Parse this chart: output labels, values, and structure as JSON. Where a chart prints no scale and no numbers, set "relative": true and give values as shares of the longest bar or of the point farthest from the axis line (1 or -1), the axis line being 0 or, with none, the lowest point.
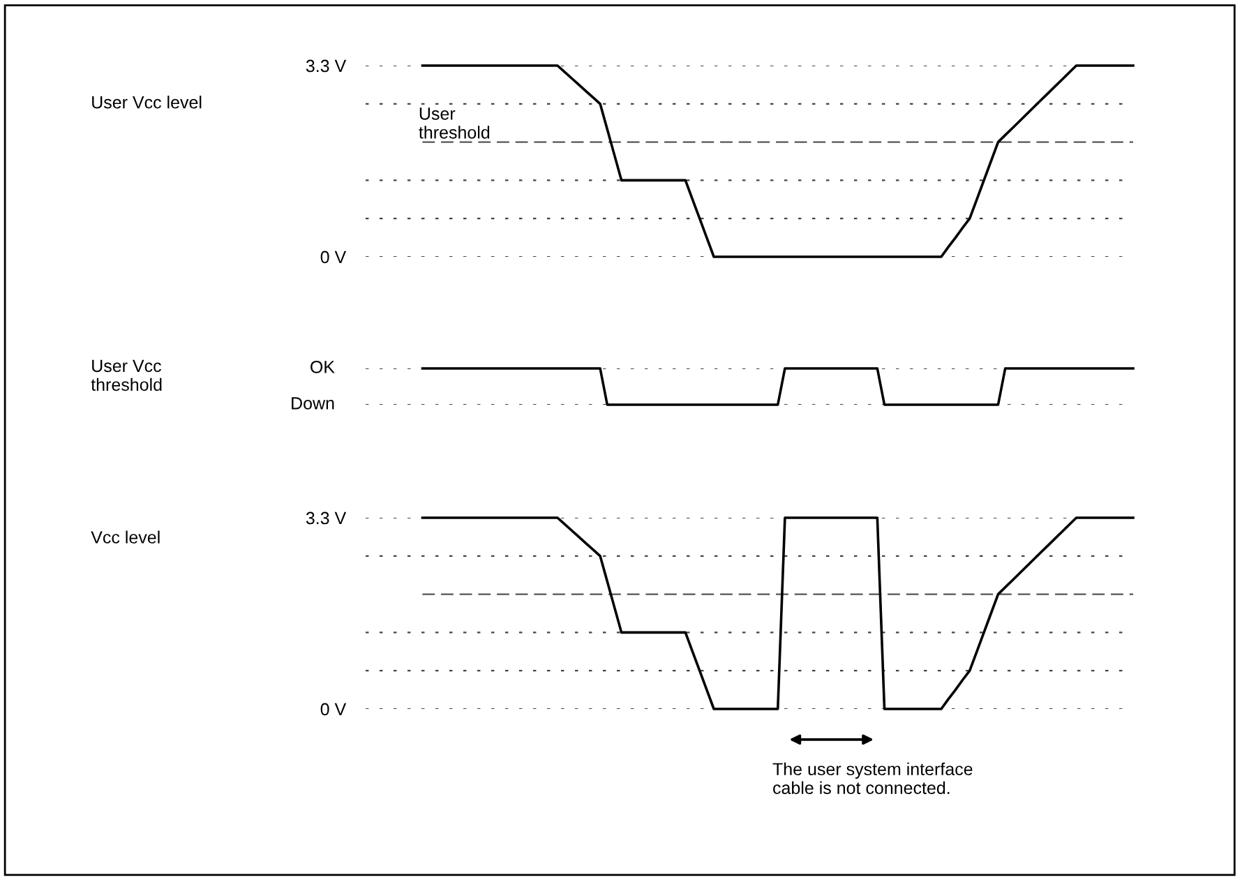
{
  "chart_data": [
    {
      "type": "line",
      "ylabel": "User Vcc level",
      "tick_labels": "y",
      "grid": "y",
      "ylim": [
        0,
        3.3
      ],
      "yticks": [
        {
          "value": 0,
          "label": "0 V"
        },
        {
          "value": 0.66,
          "label": null
        },
        {
          "value": 1.32,
          "label": null
        },
        {
          "value": 2.64,
          "label": null
        },
        {
          "value": 3.3,
          "label": "3.3 V"
        }
      ],
      "ref_lines": [
        {
          "axis": "y",
          "value": 1.98,
          "label": "User\nthreshold",
          "line_style": "dashed",
          "color": "#555555"
        }
      ],
      "categories": [
        null,
        null,
        null,
        null,
        null,
        null,
        null,
        null,
        null,
        null,
        null,
        null,
        null,
        null,
        null,
        null,
        null,
        null,
        null,
        null,
        null,
        null,
        null,
        null,
        null,
        null,
        null,
        null,
        null,
        null,
        null,
        null,
        null,
        null,
        null,
        null,
        null,
        null,
        null,
        null,
        null,
        null,
        null,
        null,
        null,
        null,
        null,
        null,
        null,
        null,
        null,
        null,
        null,
        null,
        null,
        null,
        null,
        null,
        null,
        null,
        null,
        null,
        null,
        null,
        null,
        null,
        null,
        null,
        null,
        null,
        null,
        null,
        null,
        null,
        null,
        null,
        null,
        null,
        null,
        null,
        null,
        null,
        null,
        null,
        null,
        null,
        null,
        null,
        null,
        null,
        null,
        null,
        null,
        null,
        null,
        null,
        null,
        null,
        null,
        null,
        null
      ],
      "series": [
        {
          "color": "#000000",
          "values": [
            3.3,
            3.3,
            3.3,
            3.3,
            3.3,
            3.3,
            3.3,
            3.3,
            3.3,
            3.3,
            3.3,
            3.3,
            3.3,
            3.3,
            3.3,
            3.3,
            3.3,
            3.3,
            3.3,
            3.3,
            3.19,
            3.08,
            2.97,
            2.86,
            2.75,
            2.64,
            2.2,
            1.76,
            1.32,
            1.32,
            1.32,
            1.32,
            1.32,
            1.32,
            1.32,
            1.32,
            1.32,
            1.32,
            0.99,
            0.66,
            0.33,
            0,
            0,
            0,
            0,
            0,
            0,
            0,
            0,
            0,
            0,
            0,
            0,
            0,
            0,
            0,
            0,
            0,
            0,
            0,
            0,
            0,
            0,
            0,
            0,
            0,
            0,
            0,
            0,
            0,
            0,
            0,
            0,
            0,
            0.17,
            0.33,
            0.5,
            0.66,
            0.99,
            1.32,
            1.65,
            1.98,
            2.1,
            2.22,
            2.34,
            2.46,
            2.58,
            2.7,
            2.82,
            2.94,
            3.06,
            3.18,
            3.3,
            3.3,
            3.3,
            3.3,
            3.3,
            3.3,
            3.3,
            3.3,
            3.3
          ]
        }
      ]
    },
    {
      "type": "line",
      "ylabel": "User Vcc\nthreshold",
      "relative": true,
      "grid": "y",
      "annotations": [
        "OK",
        "Down"
      ],
      "categories": [
        null,
        null,
        null,
        null,
        null,
        null,
        null,
        null,
        null,
        null,
        null,
        null,
        null,
        null,
        null,
        null,
        null,
        null,
        null,
        null,
        null,
        null,
        null,
        null,
        null,
        null,
        null,
        null,
        null,
        null,
        null,
        null,
        null,
        null,
        null,
        null,
        null,
        null,
        null,
        null,
        null,
        null,
        null,
        null,
        null,
        null,
        null,
        null,
        null,
        null,
        null,
        null,
        null,
        null,
        null,
        null,
        null,
        null,
        null,
        null,
        null,
        null,
        null,
        null,
        null,
        null,
        null,
        null,
        null,
        null,
        null,
        null,
        null,
        null,
        null,
        null,
        null,
        null,
        null,
        null,
        null,
        null,
        null,
        null,
        null,
        null,
        null,
        null,
        null,
        null,
        null,
        null,
        null,
        null,
        null,
        null,
        null,
        null,
        null,
        null,
        null
      ],
      "series": [
        {
          "color": "#000000",
          "values": [
            1,
            1,
            1,
            1,
            1,
            1,
            1,
            1,
            1,
            1,
            1,
            1,
            1,
            1,
            1,
            1,
            1,
            1,
            1,
            1,
            1,
            1,
            1,
            1,
            1,
            1,
            0,
            0,
            0,
            0,
            0,
            0,
            0,
            0,
            0,
            0,
            0,
            0,
            0,
            0,
            0,
            0,
            0,
            0,
            0,
            0,
            0,
            0,
            0,
            0,
            0,
            1,
            1,
            1,
            1,
            1,
            1,
            1,
            1,
            1,
            1,
            1,
            1,
            1,
            1,
            0,
            0,
            0,
            0,
            0,
            0,
            0,
            0,
            0,
            0,
            0,
            0,
            0,
            0,
            0,
            0,
            0,
            1,
            1,
            1,
            1,
            1,
            1,
            1,
            1,
            1,
            1,
            1,
            1,
            1,
            1,
            1,
            1,
            1,
            1,
            1
          ]
        }
      ]
    },
    {
      "type": "line",
      "ylabel": "Vcc level",
      "tick_labels": "y",
      "grid": "y",
      "ylim": [
        0,
        3.3
      ],
      "yticks": [
        {
          "value": 0,
          "label": "0 V"
        },
        {
          "value": 0.66,
          "label": null
        },
        {
          "value": 1.32,
          "label": null
        },
        {
          "value": 2.64,
          "label": null
        },
        {
          "value": 3.3,
          "label": "3.3 V"
        }
      ],
      "ref_lines": [
        {
          "axis": "y",
          "value": 1.98,
          "line_style": "dashed",
          "color": "#555555"
        }
      ],
      "annotations": [
        "The user system interface\ncable is not connected."
      ],
      "categories": [
        null,
        null,
        null,
        null,
        null,
        null,
        null,
        null,
        null,
        null,
        null,
        null,
        null,
        null,
        null,
        null,
        null,
        null,
        null,
        null,
        null,
        null,
        null,
        null,
        null,
        null,
        null,
        null,
        null,
        null,
        null,
        null,
        null,
        null,
        null,
        null,
        null,
        null,
        null,
        null,
        null,
        null,
        null,
        null,
        null,
        null,
        null,
        null,
        null,
        null,
        null,
        null,
        null,
        null,
        null,
        null,
        null,
        null,
        null,
        null,
        null,
        null,
        null,
        null,
        null,
        null,
        null,
        null,
        null,
        null,
        null,
        null,
        null,
        null,
        null,
        null,
        null,
        null,
        null,
        null,
        null,
        null,
        null,
        null,
        null,
        null,
        null,
        null,
        null,
        null,
        null,
        null,
        null,
        null,
        null,
        null,
        null,
        null,
        null,
        null,
        null
      ],
      "series": [
        {
          "color": "#000000",
          "values": [
            3.3,
            3.3,
            3.3,
            3.3,
            3.3,
            3.3,
            3.3,
            3.3,
            3.3,
            3.3,
            3.3,
            3.3,
            3.3,
            3.3,
            3.3,
            3.3,
            3.3,
            3.3,
            3.3,
            3.3,
            3.19,
            3.08,
            2.97,
            2.86,
            2.75,
            2.64,
            2.2,
            1.76,
            1.32,
            1.32,
            1.32,
            1.32,
            1.32,
            1.32,
            1.32,
            1.32,
            1.32,
            1.32,
            0.99,
            0.66,
            0.33,
            0,
            0,
            0,
            0,
            0,
            0,
            0,
            0,
            0,
            0,
            3.3,
            3.3,
            3.3,
            3.3,
            3.3,
            3.3,
            3.3,
            3.3,
            3.3,
            3.3,
            3.3,
            3.3,
            3.3,
            3.3,
            0,
            0,
            0,
            0,
            0,
            0,
            0,
            0,
            0,
            0.17,
            0.33,
            0.5,
            0.66,
            0.99,
            1.32,
            1.65,
            1.98,
            2.1,
            2.22,
            2.34,
            2.46,
            2.58,
            2.7,
            2.82,
            2.94,
            3.06,
            3.18,
            3.3,
            3.3,
            3.3,
            3.3,
            3.3,
            3.3,
            3.3,
            3.3,
            3.3
          ]
        }
      ]
    }
  ]
}
